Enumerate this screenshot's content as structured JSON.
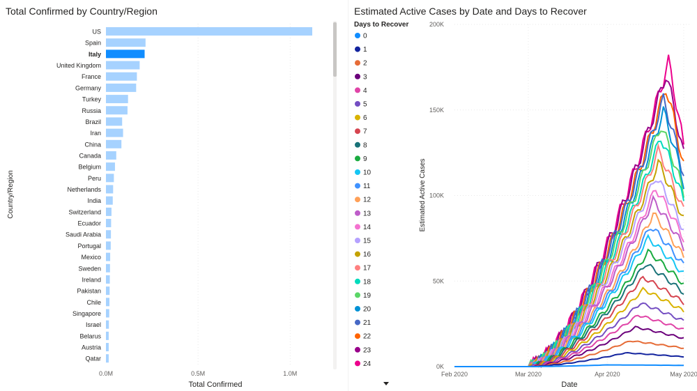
{
  "left_chart": {
    "title": "Total Confirmed by Country/Region",
    "xlabel": "Total Confirmed",
    "ylabel": "Country/Region",
    "highlight_color": "#118DFF",
    "bar_color": "#A6D2FF",
    "highlighted": "Italy",
    "scroll_icon": "scroll-down-arrow-icon"
  },
  "right_chart": {
    "title": "Estimated Active Cases by Date and Days to Recover",
    "xlabel": "Date",
    "ylabel": "Estimated Active Cases",
    "legend_title": "Days to Recover",
    "x_ticks": [
      "Feb 2020",
      "Mar 2020",
      "Apr 2020",
      "May 2020"
    ],
    "y_ticks": [
      "0K",
      "50K",
      "100K",
      "150K",
      "200K"
    ]
  },
  "chart_data": [
    {
      "type": "bar",
      "orientation": "horizontal",
      "title": "Total Confirmed by Country/Region",
      "xlabel": "Total Confirmed",
      "ylabel": "Country/Region",
      "xlim": [
        0,
        1200000
      ],
      "x_tick_labels": [
        "0.0M",
        "0.5M",
        "1.0M"
      ],
      "x_tick_values": [
        0,
        500000,
        1000000
      ],
      "grid": true,
      "categories": [
        "US",
        "Spain",
        "Italy",
        "United Kingdom",
        "France",
        "Germany",
        "Turkey",
        "Russia",
        "Brazil",
        "Iran",
        "China",
        "Canada",
        "Belgium",
        "Peru",
        "Netherlands",
        "India",
        "Switzerland",
        "Ecuador",
        "Saudi Arabia",
        "Portugal",
        "Mexico",
        "Sweden",
        "Ireland",
        "Pakistan",
        "Chile",
        "Singapore",
        "Israel",
        "Belarus",
        "Austria",
        "Qatar"
      ],
      "values": [
        1120000,
        215000,
        210000,
        183000,
        168000,
        164000,
        120000,
        117000,
        88000,
        93000,
        84000,
        56000,
        49000,
        43000,
        39000,
        37000,
        30000,
        28000,
        27000,
        26000,
        23000,
        22000,
        21000,
        20000,
        19000,
        18000,
        16000,
        15000,
        15000,
        15000
      ]
    },
    {
      "type": "line",
      "title": "Estimated Active Cases by Date and Days to Recover",
      "xlabel": "Date",
      "ylabel": "Estimated Active Cases",
      "ylim": [
        0,
        200000
      ],
      "xlim": [
        "2020-02-01",
        "2020-05-01"
      ],
      "grid": true,
      "legend_title": "Days to Recover",
      "legend_position": "left",
      "series_names": [
        "0",
        "1",
        "2",
        "3",
        "4",
        "5",
        "6",
        "7",
        "8",
        "9",
        "10",
        "11",
        "12",
        "13",
        "14",
        "15",
        "16",
        "17",
        "18",
        "19",
        "20",
        "21",
        "22",
        "23",
        "24"
      ],
      "series_colors": [
        "#118DFF",
        "#12239E",
        "#E66C37",
        "#6B007B",
        "#E044A7",
        "#744EC2",
        "#D9B300",
        "#D64550",
        "#197278",
        "#1AAB40",
        "#15C6F4",
        "#4092FF",
        "#FFA058",
        "#BE5DC9",
        "#F472D0",
        "#B5A1FF",
        "#C4A200",
        "#FF8080",
        "#00DBBC",
        "#5BD667",
        "#0091D5",
        "#4668C5",
        "#FF6300",
        "#99008A",
        "#EC008C"
      ],
      "series_peak_values": [
        1000,
        8000,
        15000,
        23000,
        30000,
        37000,
        45000,
        52000,
        60000,
        67000,
        75000,
        82000,
        89000,
        97000,
        104000,
        111000,
        119000,
        126000,
        134000,
        141000,
        149000,
        156000,
        163000,
        171000,
        178000
      ],
      "series_peak_dates": [
        "2020-04-01",
        "2020-04-08",
        "2020-04-10",
        "2020-04-12",
        "2020-04-13",
        "2020-04-14",
        "2020-04-15",
        "2020-04-15",
        "2020-04-16",
        "2020-04-17",
        "2020-04-17",
        "2020-04-18",
        "2020-04-19",
        "2020-04-19",
        "2020-04-20",
        "2020-04-20",
        "2020-04-21",
        "2020-04-21",
        "2020-04-22",
        "2020-04-22",
        "2020-04-23",
        "2020-04-23",
        "2020-04-24",
        "2020-04-24",
        "2020-04-25"
      ]
    }
  ]
}
